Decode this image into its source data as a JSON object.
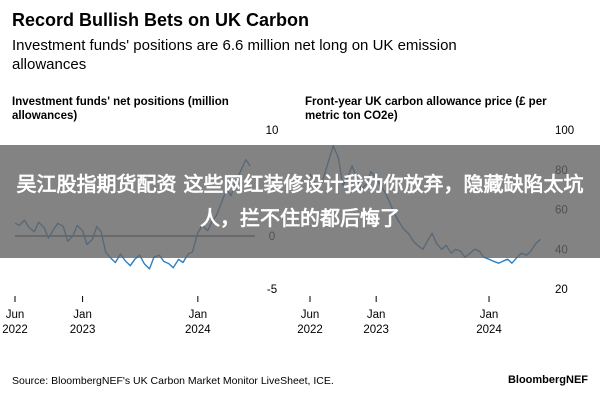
{
  "header": {
    "title": "Record Bullish Bets on UK Carbon",
    "subtitle": "Investment funds' positions are 6.6 million net long on UK emission allowances"
  },
  "overlay": {
    "text": "吴江股指期货配资 这些网红装修设计我劝你放弃，隐藏缺陷太坑人，拦不住的都后悔了"
  },
  "footer": {
    "source": "Source: BloombergNEF's UK Carbon Market Monitor LiveSheet, ICE.",
    "brand": "BloombergNEF"
  },
  "colors": {
    "series": "#2f7fc1",
    "zero_line": "#000000",
    "tick": "#000000"
  },
  "chart_data": [
    {
      "type": "line",
      "title": "Investment funds' net positions (million allowances)",
      "ylim": [
        -5,
        10
      ],
      "yticks": [
        10,
        5,
        0,
        -5
      ],
      "yticklabels": [
        "10",
        "5",
        "0",
        "-5"
      ],
      "xlim": [
        "2022-06-01",
        "2024-06-30"
      ],
      "xticks": [
        {
          "date": "2022-06-01",
          "label": [
            "Jun",
            "2022"
          ]
        },
        {
          "date": "2023-01-01",
          "label": [
            "Jan",
            "2023"
          ]
        },
        {
          "date": "2024-01-01",
          "label": [
            "Jan",
            "2024"
          ]
        }
      ],
      "series": [
        {
          "x": [
            "2022-06-01",
            "2022-06-15",
            "2022-07-01",
            "2022-07-15",
            "2022-08-01",
            "2022-08-15",
            "2022-09-01",
            "2022-09-15",
            "2022-10-01",
            "2022-10-15",
            "2022-11-01",
            "2022-11-15",
            "2022-12-01",
            "2022-12-15",
            "2023-01-01",
            "2023-01-15",
            "2023-02-01",
            "2023-02-15",
            "2023-03-01",
            "2023-03-15",
            "2023-04-01",
            "2023-04-15",
            "2023-05-01",
            "2023-05-15",
            "2023-06-01",
            "2023-06-15",
            "2023-07-01",
            "2023-07-15",
            "2023-08-01",
            "2023-08-15",
            "2023-09-01",
            "2023-09-15",
            "2023-10-01",
            "2023-10-15",
            "2023-11-01",
            "2023-11-15",
            "2023-12-01",
            "2023-12-15",
            "2024-01-01",
            "2024-01-15",
            "2024-02-01",
            "2024-02-15",
            "2024-03-01",
            "2024-03-15",
            "2024-04-01",
            "2024-04-15",
            "2024-05-01",
            "2024-05-15",
            "2024-06-01",
            "2024-06-15"
          ],
          "y": [
            1.2,
            1.0,
            1.5,
            0.8,
            0.4,
            1.3,
            0.8,
            -0.2,
            0.6,
            1.2,
            0.9,
            -0.5,
            0.0,
            1.0,
            0.5,
            -0.8,
            -0.3,
            0.9,
            0.4,
            -1.5,
            -2.1,
            -2.5,
            -1.7,
            -2.3,
            -2.8,
            -2.2,
            -1.8,
            -2.6,
            -3.1,
            -2.0,
            -1.8,
            -2.4,
            -2.6,
            -3.0,
            -2.2,
            -2.5,
            -1.7,
            -1.5,
            0.3,
            1.0,
            0.5,
            1.4,
            2.0,
            3.1,
            4.4,
            3.8,
            5.2,
            6.1,
            7.2,
            6.6
          ]
        }
      ]
    },
    {
      "type": "line",
      "title": "Front-year UK carbon allowance price (£ per metric ton CO2e)",
      "ylim": [
        20,
        100
      ],
      "yticks": [
        100,
        80,
        60,
        40,
        20
      ],
      "yticklabels": [
        "100",
        "80",
        "60",
        "40",
        "20"
      ],
      "xlim": [
        "2022-06-01",
        "2024-06-30"
      ],
      "xticks": [
        {
          "date": "2022-06-01",
          "label": [
            "Jun",
            "2022"
          ]
        },
        {
          "date": "2023-01-01",
          "label": [
            "Jan",
            "2023"
          ]
        },
        {
          "date": "2024-01-01",
          "label": [
            "Jan",
            "2024"
          ]
        }
      ],
      "series": [
        {
          "x": [
            "2022-06-01",
            "2022-06-15",
            "2022-07-01",
            "2022-07-15",
            "2022-08-01",
            "2022-08-15",
            "2022-09-01",
            "2022-09-15",
            "2022-10-01",
            "2022-10-15",
            "2022-11-01",
            "2022-11-15",
            "2022-12-01",
            "2022-12-15",
            "2023-01-01",
            "2023-01-15",
            "2023-02-01",
            "2023-02-15",
            "2023-03-01",
            "2023-03-15",
            "2023-04-01",
            "2023-04-15",
            "2023-05-01",
            "2023-05-15",
            "2023-06-01",
            "2023-06-15",
            "2023-07-01",
            "2023-07-15",
            "2023-08-01",
            "2023-08-15",
            "2023-09-01",
            "2023-09-15",
            "2023-10-01",
            "2023-10-15",
            "2023-11-01",
            "2023-11-15",
            "2023-12-01",
            "2023-12-15",
            "2024-01-01",
            "2024-01-15",
            "2024-02-01",
            "2024-02-15",
            "2024-03-01",
            "2024-03-15",
            "2024-04-01",
            "2024-04-15",
            "2024-05-01",
            "2024-05-15",
            "2024-06-01",
            "2024-06-15"
          ],
          "y": [
            78,
            74,
            71,
            76,
            85,
            92,
            86,
            72,
            76,
            82,
            75,
            70,
            73,
            79,
            76,
            72,
            68,
            63,
            58,
            54,
            50,
            48,
            44,
            42,
            40,
            44,
            48,
            43,
            40,
            42,
            38,
            40,
            39,
            36,
            38,
            40,
            39,
            36,
            35,
            34,
            33,
            34,
            35,
            33,
            36,
            38,
            37,
            39,
            43,
            45
          ]
        }
      ]
    }
  ]
}
